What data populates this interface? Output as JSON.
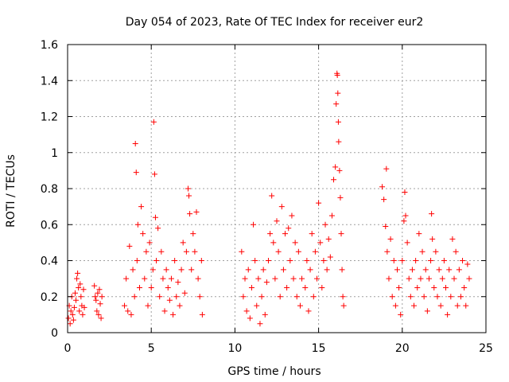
{
  "chart_data": {
    "type": "scatter",
    "title": "Day 054 of 2023, Rate Of TEC Index for receiver eur2",
    "xlabel": "GPS time / hours",
    "ylabel": "ROTI / TECUs",
    "xlim": [
      0,
      25
    ],
    "ylim": [
      0,
      1.6
    ],
    "xticks": [
      0,
      5,
      10,
      15,
      20,
      25
    ],
    "xtick_labels": [
      "0",
      "5",
      "10",
      "15",
      "20",
      "25"
    ],
    "yticks": [
      0,
      0.2,
      0.4,
      0.6,
      0.8,
      1.0,
      1.2,
      1.4,
      1.6
    ],
    "ytick_labels": [
      "0",
      "0.2",
      "0.4",
      "0.6",
      "0.8",
      "1",
      "1.2",
      "1.4",
      "1.6"
    ],
    "grid": true,
    "marker": "+",
    "color": "#ff0000",
    "series": [
      {
        "name": "ROTI",
        "points": [
          [
            0.05,
            0.08
          ],
          [
            0.1,
            0.15
          ],
          [
            0.15,
            0.05
          ],
          [
            0.2,
            0.12
          ],
          [
            0.25,
            0.2
          ],
          [
            0.3,
            0.1
          ],
          [
            0.35,
            0.07
          ],
          [
            0.4,
            0.14
          ],
          [
            0.45,
            0.22
          ],
          [
            0.5,
            0.18
          ],
          [
            0.55,
            0.3
          ],
          [
            0.6,
            0.33
          ],
          [
            0.65,
            0.25
          ],
          [
            0.7,
            0.12
          ],
          [
            0.75,
            0.27
          ],
          [
            0.8,
            0.2
          ],
          [
            0.85,
            0.15
          ],
          [
            0.9,
            0.1
          ],
          [
            0.95,
            0.24
          ],
          [
            1.0,
            0.14
          ],
          [
            1.6,
            0.26
          ],
          [
            1.65,
            0.2
          ],
          [
            1.7,
            0.18
          ],
          [
            1.75,
            0.12
          ],
          [
            1.8,
            0.22
          ],
          [
            1.85,
            0.1
          ],
          [
            1.9,
            0.24
          ],
          [
            1.95,
            0.16
          ],
          [
            2.0,
            0.08
          ],
          [
            2.05,
            0.2
          ],
          [
            3.4,
            0.15
          ],
          [
            3.5,
            0.3
          ],
          [
            3.6,
            0.12
          ],
          [
            3.7,
            0.48
          ],
          [
            3.8,
            0.1
          ],
          [
            3.9,
            0.35
          ],
          [
            4.0,
            0.2
          ],
          [
            4.05,
            1.05
          ],
          [
            4.1,
            0.89
          ],
          [
            4.15,
            0.4
          ],
          [
            4.2,
            0.6
          ],
          [
            4.3,
            0.25
          ],
          [
            4.4,
            0.7
          ],
          [
            4.5,
            0.55
          ],
          [
            4.6,
            0.3
          ],
          [
            4.7,
            0.45
          ],
          [
            4.8,
            0.15
          ],
          [
            4.9,
            0.5
          ],
          [
            5.0,
            0.25
          ],
          [
            5.1,
            0.35
          ],
          [
            5.15,
            1.17
          ],
          [
            5.2,
            0.88
          ],
          [
            5.25,
            0.64
          ],
          [
            5.3,
            0.4
          ],
          [
            5.4,
            0.58
          ],
          [
            5.5,
            0.2
          ],
          [
            5.6,
            0.45
          ],
          [
            5.7,
            0.3
          ],
          [
            5.8,
            0.12
          ],
          [
            5.9,
            0.35
          ],
          [
            6.0,
            0.25
          ],
          [
            6.1,
            0.18
          ],
          [
            6.2,
            0.3
          ],
          [
            6.3,
            0.1
          ],
          [
            6.4,
            0.4
          ],
          [
            6.5,
            0.2
          ],
          [
            6.6,
            0.28
          ],
          [
            6.7,
            0.15
          ],
          [
            6.8,
            0.35
          ],
          [
            6.9,
            0.5
          ],
          [
            7.0,
            0.22
          ],
          [
            7.1,
            0.45
          ],
          [
            7.2,
            0.8
          ],
          [
            7.25,
            0.76
          ],
          [
            7.3,
            0.66
          ],
          [
            7.4,
            0.35
          ],
          [
            7.5,
            0.55
          ],
          [
            7.6,
            0.45
          ],
          [
            7.7,
            0.67
          ],
          [
            7.8,
            0.3
          ],
          [
            7.9,
            0.2
          ],
          [
            8.0,
            0.4
          ],
          [
            8.05,
            0.1
          ],
          [
            10.4,
            0.45
          ],
          [
            10.5,
            0.2
          ],
          [
            10.6,
            0.3
          ],
          [
            10.7,
            0.12
          ],
          [
            10.8,
            0.35
          ],
          [
            10.9,
            0.08
          ],
          [
            11.0,
            0.25
          ],
          [
            11.1,
            0.6
          ],
          [
            11.2,
            0.4
          ],
          [
            11.3,
            0.15
          ],
          [
            11.4,
            0.3
          ],
          [
            11.5,
            0.05
          ],
          [
            11.6,
            0.2
          ],
          [
            11.7,
            0.35
          ],
          [
            11.8,
            0.1
          ],
          [
            11.9,
            0.28
          ],
          [
            12.0,
            0.4
          ],
          [
            12.1,
            0.55
          ],
          [
            12.2,
            0.76
          ],
          [
            12.3,
            0.5
          ],
          [
            12.4,
            0.3
          ],
          [
            12.5,
            0.62
          ],
          [
            12.6,
            0.45
          ],
          [
            12.7,
            0.2
          ],
          [
            12.8,
            0.7
          ],
          [
            12.9,
            0.35
          ],
          [
            13.0,
            0.55
          ],
          [
            13.1,
            0.25
          ],
          [
            13.2,
            0.58
          ],
          [
            13.3,
            0.4
          ],
          [
            13.4,
            0.65
          ],
          [
            13.5,
            0.3
          ],
          [
            13.6,
            0.5
          ],
          [
            13.7,
            0.2
          ],
          [
            13.8,
            0.45
          ],
          [
            13.9,
            0.15
          ],
          [
            14.0,
            0.3
          ],
          [
            14.2,
            0.25
          ],
          [
            14.3,
            0.4
          ],
          [
            14.4,
            0.12
          ],
          [
            14.5,
            0.35
          ],
          [
            14.6,
            0.55
          ],
          [
            14.7,
            0.2
          ],
          [
            14.8,
            0.45
          ],
          [
            14.9,
            0.3
          ],
          [
            15.0,
            0.72
          ],
          [
            15.1,
            0.5
          ],
          [
            15.2,
            0.25
          ],
          [
            15.3,
            0.4
          ],
          [
            15.4,
            0.6
          ],
          [
            15.5,
            0.35
          ],
          [
            15.6,
            0.52
          ],
          [
            15.7,
            0.42
          ],
          [
            15.8,
            0.65
          ],
          [
            15.9,
            0.85
          ],
          [
            16.0,
            0.92
          ],
          [
            16.05,
            1.27
          ],
          [
            16.1,
            1.44
          ],
          [
            16.12,
            1.43
          ],
          [
            16.15,
            1.33
          ],
          [
            16.18,
            1.17
          ],
          [
            16.2,
            1.06
          ],
          [
            16.25,
            0.9
          ],
          [
            16.3,
            0.75
          ],
          [
            16.35,
            0.55
          ],
          [
            16.4,
            0.35
          ],
          [
            16.45,
            0.2
          ],
          [
            16.5,
            0.15
          ],
          [
            18.8,
            0.81
          ],
          [
            18.9,
            0.74
          ],
          [
            19.0,
            0.59
          ],
          [
            19.05,
            0.91
          ],
          [
            19.1,
            0.45
          ],
          [
            19.2,
            0.3
          ],
          [
            19.3,
            0.52
          ],
          [
            19.4,
            0.2
          ],
          [
            19.5,
            0.4
          ],
          [
            19.6,
            0.15
          ],
          [
            19.7,
            0.35
          ],
          [
            19.8,
            0.25
          ],
          [
            19.9,
            0.1
          ],
          [
            20.0,
            0.4
          ],
          [
            20.1,
            0.62
          ],
          [
            20.15,
            0.78
          ],
          [
            20.2,
            0.65
          ],
          [
            20.3,
            0.5
          ],
          [
            20.4,
            0.3
          ],
          [
            20.5,
            0.2
          ],
          [
            20.6,
            0.35
          ],
          [
            20.7,
            0.15
          ],
          [
            20.8,
            0.4
          ],
          [
            20.9,
            0.25
          ],
          [
            21.0,
            0.55
          ],
          [
            21.1,
            0.3
          ],
          [
            21.2,
            0.45
          ],
          [
            21.3,
            0.2
          ],
          [
            21.4,
            0.35
          ],
          [
            21.5,
            0.12
          ],
          [
            21.6,
            0.3
          ],
          [
            21.7,
            0.4
          ],
          [
            21.75,
            0.66
          ],
          [
            21.8,
            0.52
          ],
          [
            21.9,
            0.25
          ],
          [
            22.0,
            0.45
          ],
          [
            22.1,
            0.2
          ],
          [
            22.2,
            0.35
          ],
          [
            22.3,
            0.15
          ],
          [
            22.4,
            0.3
          ],
          [
            22.5,
            0.4
          ],
          [
            22.6,
            0.25
          ],
          [
            22.7,
            0.1
          ],
          [
            22.8,
            0.35
          ],
          [
            22.9,
            0.2
          ],
          [
            23.0,
            0.52
          ],
          [
            23.1,
            0.3
          ],
          [
            23.2,
            0.45
          ],
          [
            23.3,
            0.15
          ],
          [
            23.4,
            0.35
          ],
          [
            23.5,
            0.2
          ],
          [
            23.6,
            0.4
          ],
          [
            23.7,
            0.25
          ],
          [
            23.8,
            0.15
          ],
          [
            23.9,
            0.38
          ],
          [
            24.0,
            0.3
          ]
        ]
      }
    ]
  }
}
